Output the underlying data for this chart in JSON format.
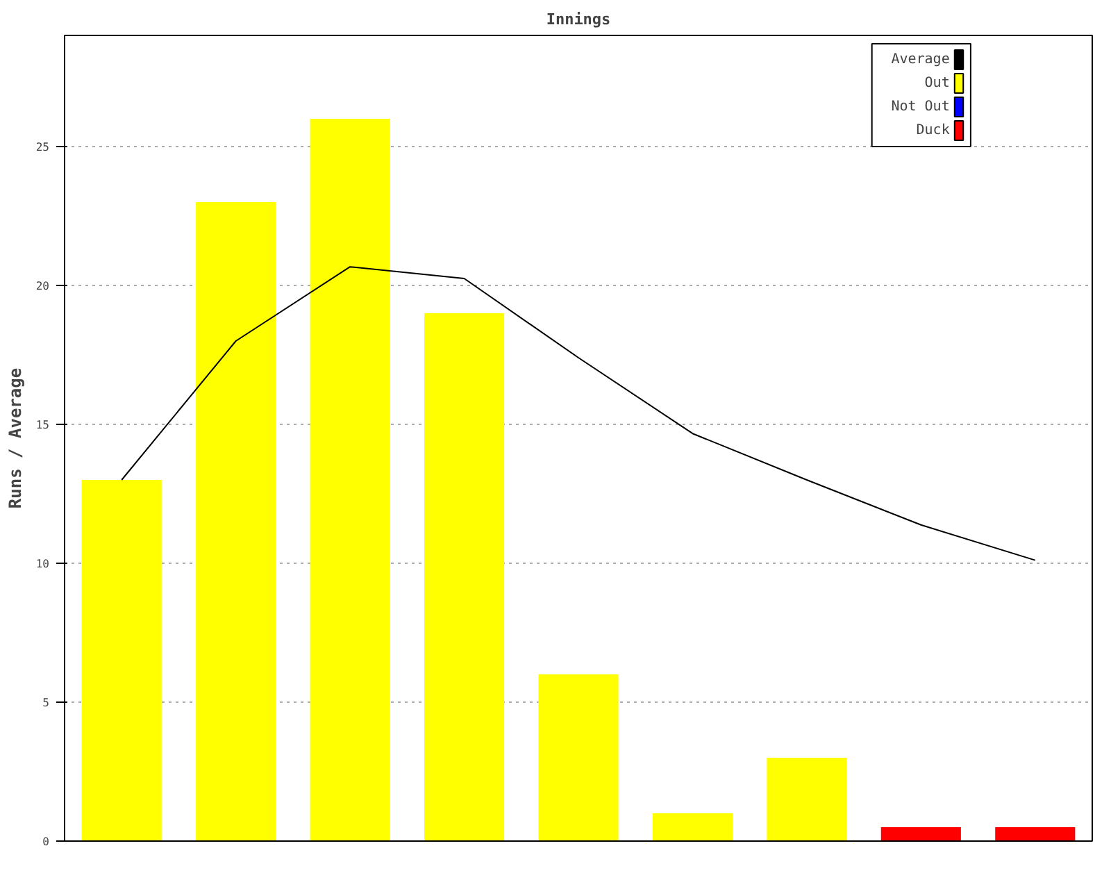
{
  "chart_data": {
    "type": "bar",
    "title": "Innings",
    "ylabel": "Runs / Average",
    "categories": [
      null,
      null,
      null,
      null,
      null,
      null,
      null,
      null,
      null
    ],
    "series": [
      {
        "name": "Average",
        "type": "line",
        "color": "#000000",
        "values": [
          13,
          18,
          20.67,
          20.25,
          17.4,
          14.67,
          13,
          11.38,
          10.11
        ]
      },
      {
        "name": "Out",
        "color": "#ffff00",
        "values": [
          13,
          23,
          26,
          19,
          6,
          1,
          3,
          null,
          null
        ]
      },
      {
        "name": "Not Out",
        "color": "#0000ff",
        "values": [
          null,
          null,
          null,
          null,
          null,
          null,
          null,
          null,
          null
        ]
      },
      {
        "name": "Duck",
        "color": "#ff0000",
        "values": [
          null,
          null,
          null,
          null,
          null,
          null,
          null,
          0.5,
          0.5
        ]
      }
    ],
    "ylim": [
      0,
      29
    ],
    "yticks": [
      0,
      5,
      10,
      15,
      20,
      25
    ],
    "grid": "y",
    "legend": "top right"
  }
}
